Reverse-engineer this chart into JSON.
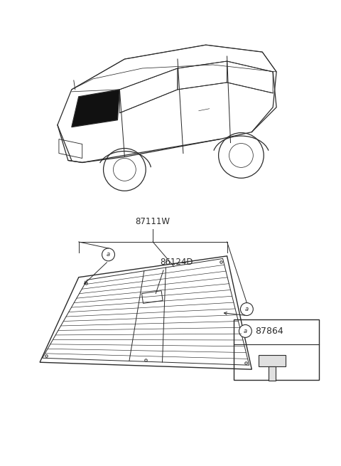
{
  "bg_color": "#ffffff",
  "line_color": "#2a2a2a",
  "figsize": [
    4.8,
    6.55
  ],
  "dpi": 100,
  "label_87111W": "87111W",
  "label_86124D": "86124D",
  "label_87864": "87864",
  "callout_letter": "a"
}
